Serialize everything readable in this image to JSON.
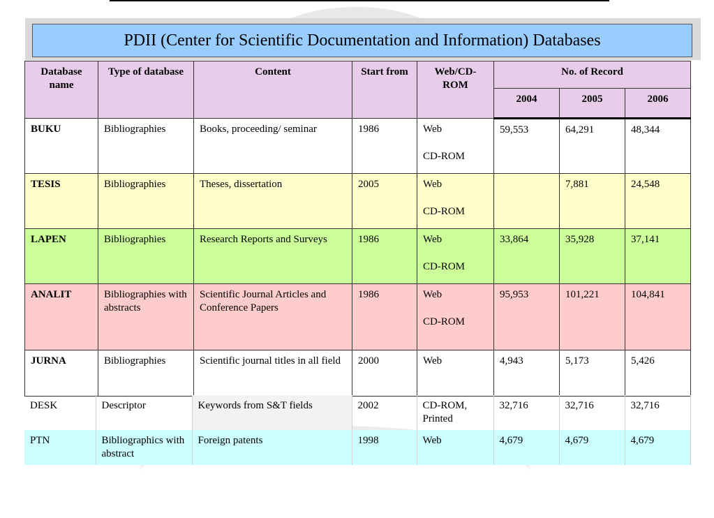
{
  "title": "PDII (Center for Scientific Documentation and Information) Databases",
  "headers": {
    "database_name": "Database name",
    "type": "Type of database",
    "content": "Content",
    "start": "Start from",
    "web": "Web/CD-ROM",
    "records": "No. of Record",
    "years": [
      "2004",
      "2005",
      "2006"
    ]
  },
  "rows": [
    {
      "name": "BUKU",
      "type": "Bibliographies",
      "content": "Books, proceeding/ seminar",
      "start": "1986",
      "web": "Web",
      "web2": "CD-ROM",
      "r2004": "59,553",
      "r2005": "64,291",
      "r2006": "48,344"
    },
    {
      "name": "TESIS",
      "type": "Bibliographies",
      "content": "Theses, dissertation",
      "start": "2005",
      "web": "Web",
      "web2": "CD-ROM",
      "r2004": "",
      "r2005": "7,881",
      "r2006": "24,548"
    },
    {
      "name": "LAPEN",
      "type": "Bibliographies",
      "content": "Research Reports and Surveys",
      "start": "1986",
      "web": "Web",
      "web2": "CD-ROM",
      "r2004": "33,864",
      "r2005": "35,928",
      "r2006": "37,141"
    },
    {
      "name": "ANALIT",
      "type": "Bibliographies with abstracts",
      "content": "Scientific Journal Articles and Conference Papers",
      "start": "1986",
      "web": "Web",
      "web2": "CD-ROM",
      "r2004": "95,953",
      "r2005": "101,221",
      "r2006": "104,841"
    },
    {
      "name": "JURNA",
      "type": "Bibliographies",
      "content": "Scientific journal titles in all field",
      "start": "2000",
      "web": "Web",
      "web2": "",
      "r2004": "4,943",
      "r2005": "5,173",
      "r2006": "5,426"
    }
  ],
  "extra_rows": [
    {
      "name": "DESK",
      "type": "Descriptor",
      "content": "Keywords from S&T fields",
      "start": "2002",
      "web": "CD-ROM, Printed",
      "r2004": "32,716",
      "r2005": "32,716",
      "r2006": "32,716"
    },
    {
      "name": "PTN",
      "type": "Bibliographics with abstract",
      "content": "Foreign patents",
      "start": "1998",
      "web": "Web",
      "r2004": "4,679",
      "r2005": "4,679",
      "r2006": "4,679"
    }
  ]
}
